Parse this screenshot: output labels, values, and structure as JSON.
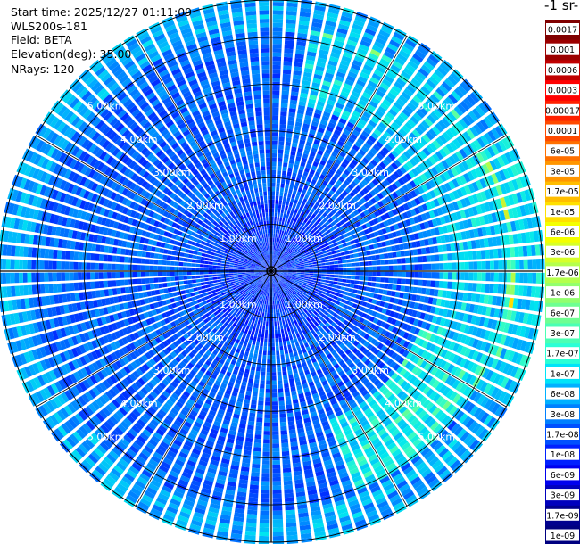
{
  "info": {
    "start_time": "Start time: 2025/12/27 01:11:09",
    "device": "WLS200s-181",
    "field": "Field: BETA",
    "elevation": "Elevation(deg): 35.00",
    "nrays": "NRays: 120"
  },
  "colorbar": {
    "unit_label": "-1 sr-",
    "labels": [
      "0.0017",
      "0.001",
      "0.0006",
      "0.0003",
      "0.00017",
      "0.0001",
      "6e-05",
      "3e-05",
      "1.7e-05",
      "1e-05",
      "6e-06",
      "3e-06",
      "1.7e-06",
      "1e-06",
      "6e-07",
      "3e-07",
      "1.7e-07",
      "1e-07",
      "6e-08",
      "3e-08",
      "1.7e-08",
      "1e-08",
      "6e-09",
      "3e-09",
      "1.7e-09",
      "1e-09"
    ],
    "colors": [
      "#800000",
      "#9c0000",
      "#c00000",
      "#ff0000",
      "#ff2000",
      "#ff4a00",
      "#ff7000",
      "#ff9600",
      "#ffbd00",
      "#ffe000",
      "#f4ff00",
      "#d6ff2a",
      "#b4ff4c",
      "#92ff6e",
      "#6eff92",
      "#4affb4",
      "#2affd6",
      "#00e4f8",
      "#00b0ff",
      "#0080ff",
      "#0050ff",
      "#0020ff",
      "#0000ee",
      "#0000bd",
      "#00008e",
      "#000080"
    ]
  },
  "chart_data": {
    "type": "heatmap",
    "projection": "polar (PPI scan)",
    "field": "BETA",
    "elevation_deg": 35.0,
    "n_rays": 120,
    "range_km": [
      0,
      5.8
    ],
    "range_ring_labels": [
      "1.00km",
      "2.00km",
      "3.00km",
      "4.00km",
      "5.00km"
    ],
    "range_rings_km": [
      1,
      2,
      3,
      4,
      5
    ],
    "spoke_angles_deg": [
      0,
      30,
      60,
      90,
      120,
      150,
      180,
      210,
      240,
      270,
      300,
      330
    ],
    "color_scale": "log",
    "value_range": [
      1e-09,
      0.0017
    ],
    "dominant_values_description": "mostly 1e-08 to 1e-07; higher (1.7e-07 to 1e-06) in northeast, east and southeast arcs near 3.5-5.5 km"
  }
}
